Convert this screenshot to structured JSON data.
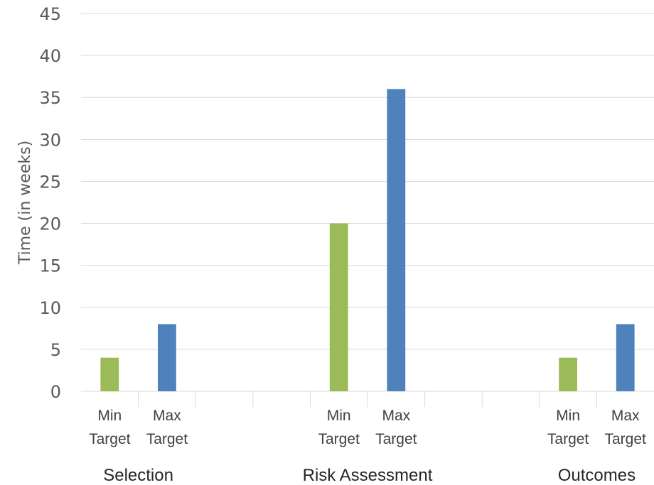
{
  "chart_data": {
    "type": "bar",
    "ylabel": "Time (in weeks)",
    "ylim": [
      0,
      45
    ],
    "ytick_step": 5,
    "grid": true,
    "legend": "none",
    "colors": {
      "min": "#9bbb59",
      "max": "#4f81bd"
    },
    "groups": [
      {
        "name": "Selection",
        "bars": [
          {
            "label": [
              "Min",
              "Target"
            ],
            "value": 4,
            "kind": "min"
          },
          {
            "label": [
              "Max",
              "Target"
            ],
            "value": 8,
            "kind": "max"
          },
          {
            "label": [
              "",
              ""
            ],
            "value": null,
            "kind": "blank"
          }
        ]
      },
      {
        "name": "Risk Assessment",
        "bars": [
          {
            "label": [
              "",
              ""
            ],
            "value": null,
            "kind": "blank"
          },
          {
            "label": [
              "Min",
              "Target"
            ],
            "value": 20,
            "kind": "min"
          },
          {
            "label": [
              "Max",
              "Target"
            ],
            "value": 36,
            "kind": "max"
          },
          {
            "label": [
              "",
              ""
            ],
            "value": null,
            "kind": "blank"
          }
        ]
      },
      {
        "name": "Outcomes",
        "bars": [
          {
            "label": [
              "",
              ""
            ],
            "value": null,
            "kind": "blank"
          },
          {
            "label": [
              "Min",
              "Target"
            ],
            "value": 4,
            "kind": "min"
          },
          {
            "label": [
              "Max",
              "Target"
            ],
            "value": 8,
            "kind": "max"
          }
        ]
      }
    ]
  }
}
